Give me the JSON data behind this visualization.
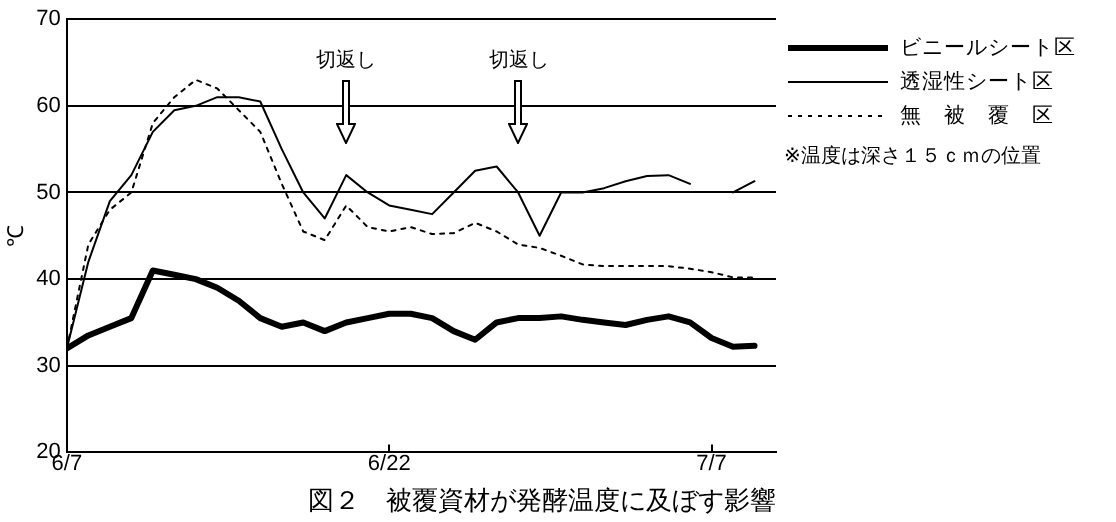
{
  "chart_data": {
    "type": "line",
    "title": "図２　被覆資材が発酵温度に及ぼす影響",
    "ylabel": "℃",
    "x": [
      "--06-07",
      "--06-08",
      "--06-09",
      "--06-10",
      "--06-11",
      "--06-12",
      "--06-13",
      "--06-14",
      "--06-15",
      "--06-16",
      "--06-17",
      "--06-18",
      "--06-19",
      "--06-20",
      "--06-21",
      "--06-22",
      "--06-23",
      "--06-24",
      "--06-25",
      "--06-26",
      "--06-27",
      "--06-28",
      "--06-29",
      "--06-30",
      "--07-01",
      "--07-02",
      "--07-03",
      "--07-04",
      "--07-05",
      "--07-06",
      "--07-07",
      "--07-08",
      "--07-09"
    ],
    "series": [
      {
        "name": "ビニールシート区",
        "color": "#000000",
        "line_style": "solid",
        "values": [
          32,
          33.5,
          34.5,
          35.5,
          41,
          40.5,
          40,
          39,
          37.5,
          35.5,
          34.5,
          35,
          34,
          35,
          35.5,
          36,
          36,
          35.5,
          34,
          33,
          35,
          35.5,
          35.5,
          35.7,
          35.3,
          35,
          34.7,
          35.3,
          35.7,
          35,
          33.2,
          32.2,
          32.3
        ]
      },
      {
        "name": "透湿性シート区",
        "color": "#000000",
        "line_style": "solid",
        "values": [
          32,
          42,
          49,
          52,
          57,
          59.5,
          60,
          61,
          61,
          60.5,
          55,
          50,
          47,
          52,
          50,
          48.5,
          48,
          47.5,
          50,
          52.5,
          53,
          50,
          45,
          50,
          50,
          50.5,
          51.3,
          51.9,
          52,
          51,
          null,
          50,
          51.3
        ]
      },
      {
        "name": "無　被　覆　区",
        "color": "#000000",
        "line_style": "dotted",
        "values": [
          32,
          44,
          48,
          50,
          58,
          61,
          63,
          62,
          59.5,
          57,
          51,
          45.5,
          44.5,
          48.5,
          46,
          45.5,
          46,
          45.2,
          45.3,
          46.5,
          45.5,
          44,
          43.6,
          42.7,
          41.7,
          41.5,
          41.5,
          41.5,
          41.5,
          41.2,
          40.8,
          40.2,
          40.2
        ]
      }
    ],
    "xlim": [
      "--06-07",
      "--07-10"
    ],
    "xticks": [
      {
        "value": "--06-07",
        "label": "6/7"
      },
      {
        "value": "--06-22",
        "label": "6/22"
      },
      {
        "value": "--07-07",
        "label": "7/7"
      }
    ],
    "ylim": [
      20,
      70
    ],
    "yticks": [
      20,
      30,
      40,
      50,
      60,
      70
    ],
    "grid": "y",
    "legend": "right",
    "marker": "none",
    "annotations": [
      "切返し",
      "切返し",
      "※温度は深さ１５ｃｍの位置"
    ]
  }
}
